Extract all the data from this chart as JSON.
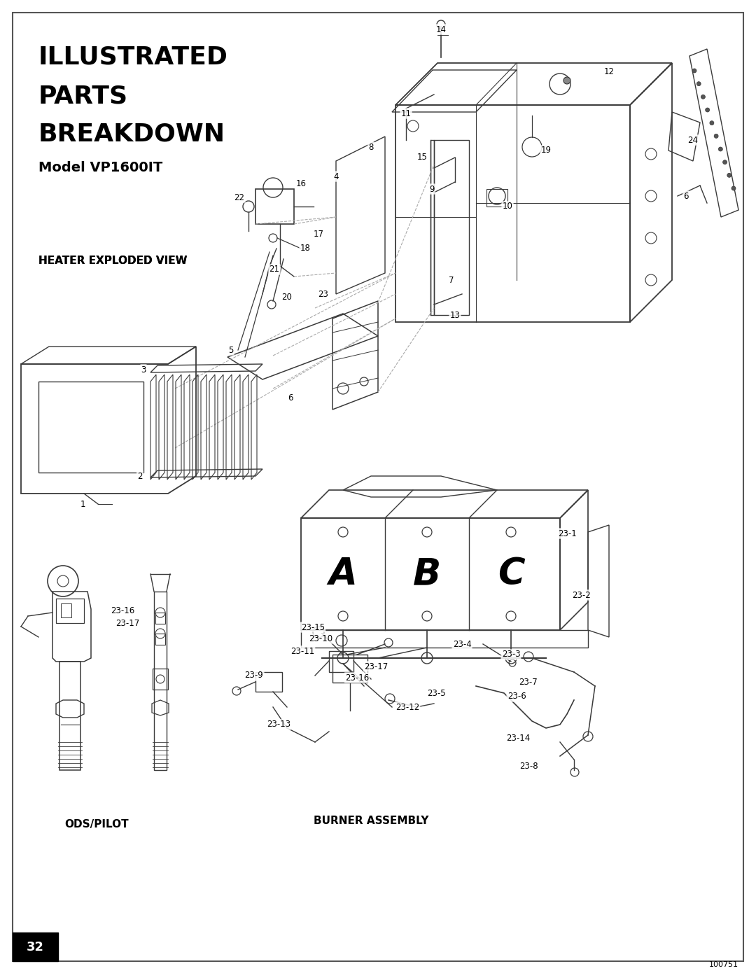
{
  "page_bg": "#ffffff",
  "border_color": "#555555",
  "title_lines": [
    "ILLUSTRATED",
    "PARTS",
    "BREAKDOWN"
  ],
  "subtitle": "Model VP1600IT",
  "title_fontsize": 26,
  "subtitle_fontsize": 14,
  "heater_label": "HEATER EXPLODED VIEW",
  "burner_label": "BURNER ASSEMBLY",
  "ods_label": "ODS/PILOT",
  "page_number": "32",
  "doc_number": "100751"
}
